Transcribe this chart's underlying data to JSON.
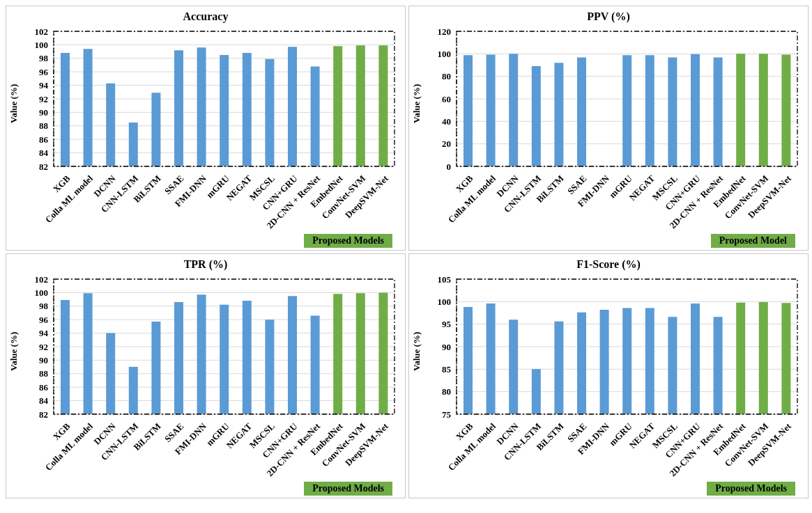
{
  "chart_data": [
    {
      "type": "bar",
      "title": "Accuracy",
      "ylabel": "Value (%)",
      "categories": [
        "XGB",
        "Colla ML model",
        "DCNN",
        "CNN-LSTM",
        "BiLSTM",
        "SSAE",
        "FMI-DNN",
        "mGRU",
        "NEGAT",
        "MSCSL",
        "CNN+GRU",
        "2D-CNN + ResNet",
        "EmbedNet",
        "ConvNet-SVM",
        "DeepSVM-Net"
      ],
      "values": [
        98.8,
        99.4,
        94.3,
        88.5,
        92.9,
        99.2,
        99.6,
        98.5,
        98.8,
        97.9,
        99.7,
        96.8,
        99.8,
        99.9,
        99.9
      ],
      "colors": [
        "#5b9bd5",
        "#5b9bd5",
        "#5b9bd5",
        "#5b9bd5",
        "#5b9bd5",
        "#5b9bd5",
        "#5b9bd5",
        "#5b9bd5",
        "#5b9bd5",
        "#5b9bd5",
        "#5b9bd5",
        "#5b9bd5",
        "#70ad47",
        "#70ad47",
        "#70ad47"
      ],
      "ylim": [
        82,
        102
      ],
      "yticks": [
        82,
        84,
        86,
        88,
        90,
        92,
        94,
        96,
        98,
        100,
        102
      ],
      "grid": "y",
      "annotations": [
        "Proposed Models"
      ]
    },
    {
      "type": "bar",
      "title": "PPV (%)",
      "ylabel": "Value (%)",
      "categories": [
        "XGB",
        "Colla ML model",
        "DCNN",
        "CNN-LSTM",
        "BiLSTM",
        "SSAE",
        "FMI-DNN",
        "mGRU",
        "NEGAT",
        "MSCSL",
        "CNN+GRU",
        "2D-CNN + ResNet",
        "EmbedNet",
        "ConvNet-SVM",
        "DeepSVM-Net"
      ],
      "values": [
        98.8,
        99.3,
        100,
        89,
        92,
        96.8,
        null,
        98.8,
        98.8,
        96.8,
        99.8,
        96.8,
        100,
        100,
        99.3
      ],
      "colors": [
        "#5b9bd5",
        "#5b9bd5",
        "#5b9bd5",
        "#5b9bd5",
        "#5b9bd5",
        "#5b9bd5",
        "#5b9bd5",
        "#5b9bd5",
        "#5b9bd5",
        "#5b9bd5",
        "#5b9bd5",
        "#5b9bd5",
        "#70ad47",
        "#70ad47",
        "#70ad47"
      ],
      "ylim": [
        0,
        120
      ],
      "yticks": [
        0,
        20,
        40,
        60,
        80,
        100,
        120
      ],
      "grid": "y",
      "annotations": [
        "Proposed Model"
      ]
    },
    {
      "type": "bar",
      "title": "TPR (%)",
      "ylabel": "Value (%)",
      "categories": [
        "XGB",
        "Colla ML model",
        "DCNN",
        "CNN-LSTM",
        "BiLSTM",
        "SSAE",
        "FMI-DNN",
        "mGRU",
        "NEGAT",
        "MSCSL",
        "CNN+GRU",
        "2D-CNN + ResNet",
        "EmbedNet",
        "ConvNet-SVM",
        "DeepSVM-Net"
      ],
      "values": [
        98.9,
        99.9,
        94.0,
        89.0,
        95.7,
        98.6,
        99.7,
        98.2,
        98.8,
        96.0,
        99.5,
        96.6,
        99.8,
        99.9,
        100
      ],
      "colors": [
        "#5b9bd5",
        "#5b9bd5",
        "#5b9bd5",
        "#5b9bd5",
        "#5b9bd5",
        "#5b9bd5",
        "#5b9bd5",
        "#5b9bd5",
        "#5b9bd5",
        "#5b9bd5",
        "#5b9bd5",
        "#5b9bd5",
        "#70ad47",
        "#70ad47",
        "#70ad47"
      ],
      "ylim": [
        82,
        102
      ],
      "yticks": [
        82,
        84,
        86,
        88,
        90,
        92,
        94,
        96,
        98,
        100,
        102
      ],
      "grid": "y",
      "annotations": [
        "Proposed Models"
      ]
    },
    {
      "type": "bar",
      "title": "F1-Score (%)",
      "ylabel": "Value (%)",
      "categories": [
        "XGB",
        "Colla ML model",
        "DCNN",
        "CNN-LSTM",
        "BiLSTM",
        "SSAE",
        "FMI-DNN",
        "mGRU",
        "NEGAT",
        "MSCSL",
        "CNN+GRU",
        "2D-CNN + ResNet",
        "EmbedNet",
        "ConvNet-SVM",
        "DeepSVM-Net"
      ],
      "values": [
        98.8,
        99.6,
        96.0,
        85.0,
        95.6,
        97.6,
        98.2,
        98.6,
        98.6,
        96.6,
        99.6,
        96.6,
        99.8,
        99.9,
        99.7
      ],
      "colors": [
        "#5b9bd5",
        "#5b9bd5",
        "#5b9bd5",
        "#5b9bd5",
        "#5b9bd5",
        "#5b9bd5",
        "#5b9bd5",
        "#5b9bd5",
        "#5b9bd5",
        "#5b9bd5",
        "#5b9bd5",
        "#5b9bd5",
        "#70ad47",
        "#70ad47",
        "#70ad47"
      ],
      "ylim": [
        75,
        105
      ],
      "yticks": [
        75,
        80,
        85,
        90,
        95,
        100,
        105
      ],
      "grid": "y",
      "annotations": [
        "Proposed Models"
      ]
    }
  ]
}
